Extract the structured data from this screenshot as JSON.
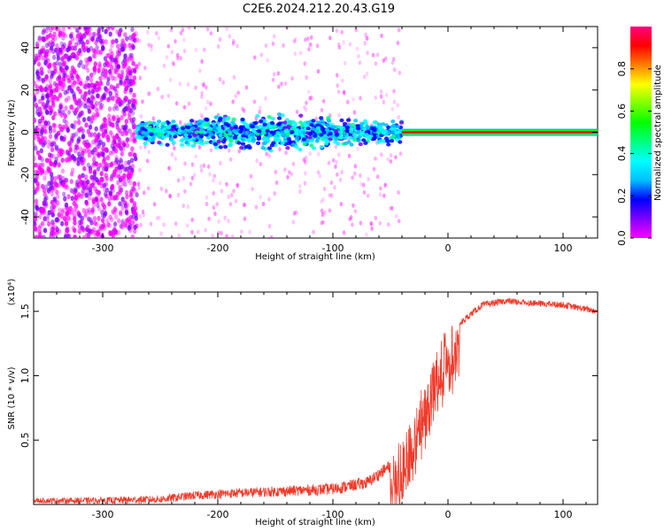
{
  "title": "C2E6.2024.212.20.43.G19",
  "colors": {
    "snr_line": "#f03a2a",
    "spectrogram_scatter": "#8a2be2",
    "spectrogram_dense": "#3a1fff",
    "carrier": "#ff1a1a"
  },
  "chart_data": [
    {
      "type": "heatmap",
      "xlabel": "Height of straight line (km)",
      "ylabel": "Frequency (Hz)",
      "xlim": [
        -360,
        130
      ],
      "ylim": [
        -50,
        50
      ],
      "xticks": [
        -300,
        -200,
        -100,
        0,
        100
      ],
      "yticks": [
        -40,
        -20,
        0,
        20,
        40
      ],
      "grid": false,
      "colorbar": {
        "label": "Normalized spectral amplitude",
        "range": [
          0.0,
          1.0
        ],
        "ticks": [
          "0.0",
          "0.2",
          "0.4",
          "0.6",
          "0.8"
        ],
        "ramp": [
          "#ff00ff",
          "#7f00ff",
          "#0000ff",
          "#00bfff",
          "#00ffff",
          "#00ff7f",
          "#00ff00",
          "#7fff00",
          "#ffff00",
          "#ff7f00",
          "#ff0000",
          "#ff007f"
        ]
      },
      "regions": [
        {
          "x_range": [
            -360,
            -270
          ],
          "freq_range": [
            -50,
            50
          ],
          "amplitude": 0.1
        },
        {
          "x_range": [
            -270,
            -40
          ],
          "freq_range": [
            -10,
            10
          ],
          "amplitude": 0.3
        },
        {
          "x_range": [
            -40,
            130
          ],
          "freq_range": [
            -1,
            1
          ],
          "amplitude": 0.95
        }
      ]
    },
    {
      "type": "line",
      "xlabel": "Height of straight line (km)",
      "ylabel": "SNR (10 * v/v)",
      "y_multiplier": "(x10⁴)",
      "xlim": [
        -360,
        130
      ],
      "ylim": [
        0,
        1.65
      ],
      "xticks": [
        -300,
        -200,
        -100,
        0,
        100
      ],
      "yticks": [
        "0.5",
        "1.0",
        "1.5"
      ],
      "grid": false,
      "series": [
        {
          "x": [
            -360,
            -300,
            -250,
            -220,
            -180,
            -150,
            -100,
            -70,
            -50,
            -40,
            -30,
            -20,
            -10,
            0,
            10,
            20,
            30,
            50,
            80,
            100,
            130
          ],
          "y": [
            0.03,
            0.03,
            0.04,
            0.07,
            0.09,
            0.1,
            0.12,
            0.17,
            0.3,
            0.45,
            0.65,
            0.9,
            1.15,
            1.3,
            1.4,
            1.48,
            1.55,
            1.58,
            1.56,
            1.55,
            1.5
          ]
        }
      ]
    }
  ]
}
